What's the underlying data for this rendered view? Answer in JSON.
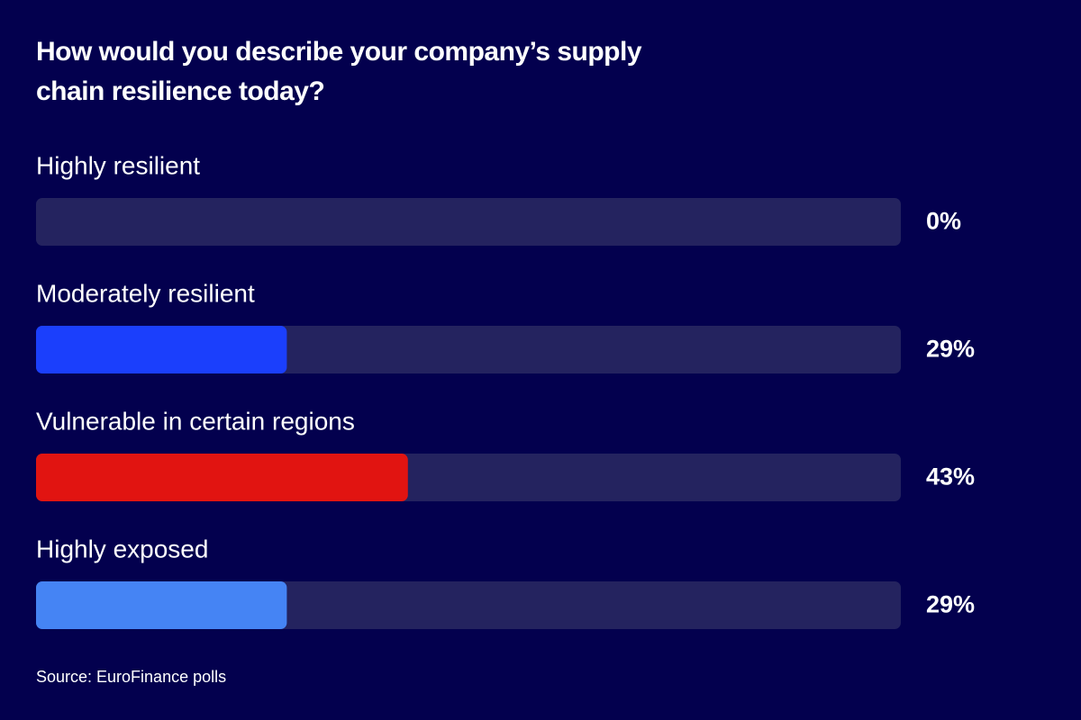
{
  "chart_data": {
    "type": "bar",
    "title": "How would you describe your company’s supply chain resilience today?",
    "categories": [
      "Highly resilient",
      "Moderately resilient",
      "Vulnerable in certain regions",
      "Highly exposed"
    ],
    "values": [
      0,
      29,
      43,
      29
    ],
    "value_labels": [
      "0%",
      "29%",
      "43%",
      "29%"
    ],
    "colors": [
      null,
      "#1b3ffc",
      "#e11411",
      "#4584f4"
    ],
    "track_color": "#24235f",
    "xlim": [
      0,
      100
    ],
    "source": "Source: EuroFinance polls"
  }
}
